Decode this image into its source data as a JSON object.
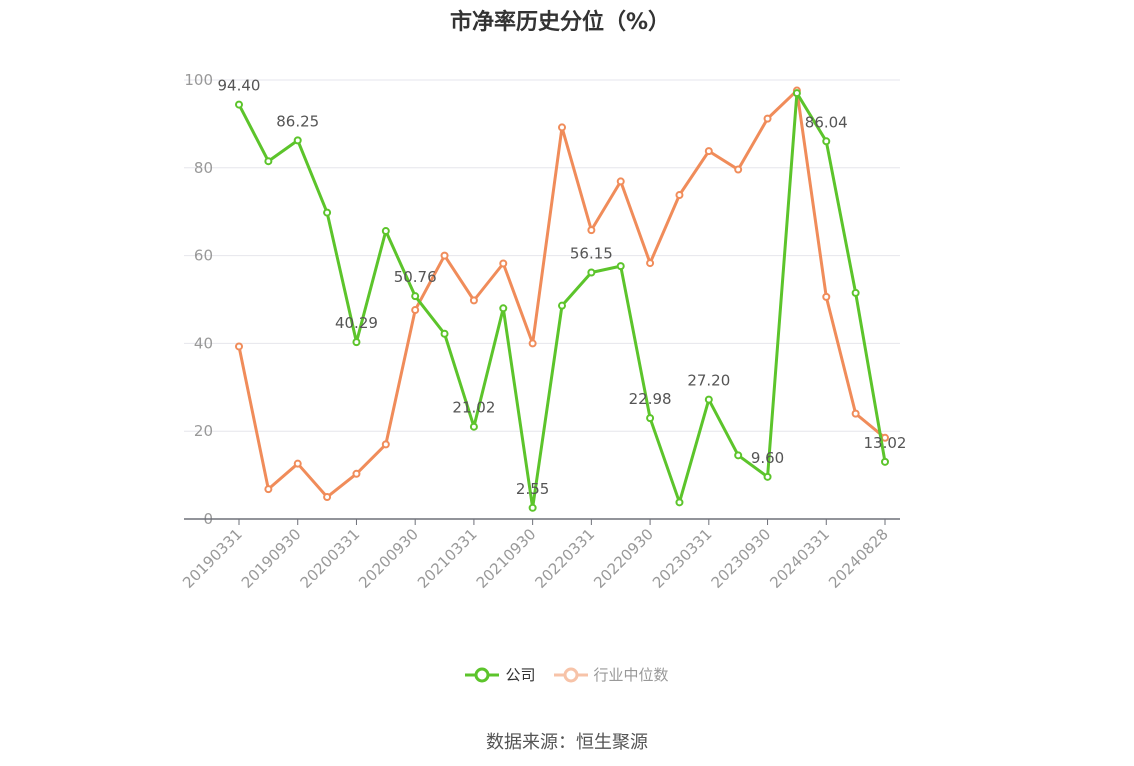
{
  "title": "市净率历史分位（%）",
  "source": "数据来源：恒生聚源",
  "colors": {
    "company": "#5cc42b",
    "industry": "#f08c5a",
    "axis": "#999999",
    "grid": "#e6e6ec",
    "label": "#555555"
  },
  "chart_data": {
    "type": "line",
    "title": "市净率历史分位（%）",
    "ylim": [
      0,
      100
    ],
    "yticks": [
      0,
      20,
      40,
      60,
      80,
      100
    ],
    "grid": true,
    "legend_position": "bottom",
    "x": [
      "20190331",
      "20190630",
      "20190930",
      "20191231",
      "20200331",
      "20200630",
      "20200930",
      "20201231",
      "20210331",
      "20210630",
      "20210930",
      "20211231",
      "20220331",
      "20220630",
      "20220930",
      "20221231",
      "20230331",
      "20230630",
      "20230930",
      "20231231",
      "20240331",
      "20240630",
      "20240828"
    ],
    "xtick_labels": [
      "20190331",
      "20190930",
      "20200331",
      "20200930",
      "20210331",
      "20210930",
      "20220331",
      "20220930",
      "20230331",
      "20230930",
      "20240331",
      "20240828"
    ],
    "series": [
      {
        "name": "公司",
        "color": "#5cc42b",
        "values": [
          94.4,
          81.5,
          86.25,
          69.8,
          40.29,
          65.6,
          50.76,
          42.2,
          21.02,
          48.0,
          2.55,
          48.6,
          56.15,
          57.6,
          22.98,
          3.8,
          27.2,
          14.5,
          9.6,
          97.0,
          86.04,
          51.5,
          13.02
        ],
        "data_labels": [
          {
            "i": 0,
            "text": "94.40"
          },
          {
            "i": 2,
            "text": "86.25"
          },
          {
            "i": 4,
            "text": "40.29"
          },
          {
            "i": 6,
            "text": "50.76"
          },
          {
            "i": 8,
            "text": "21.02"
          },
          {
            "i": 10,
            "text": "2.55"
          },
          {
            "i": 12,
            "text": "56.15"
          },
          {
            "i": 14,
            "text": "22.98"
          },
          {
            "i": 16,
            "text": "27.20"
          },
          {
            "i": 18,
            "text": "9.60"
          },
          {
            "i": 20,
            "text": "86.04"
          },
          {
            "i": 22,
            "text": "13.02"
          }
        ]
      },
      {
        "name": "行业中位数",
        "color": "#f08c5a",
        "values": [
          39.3,
          6.8,
          12.6,
          5.0,
          10.3,
          17.0,
          47.6,
          60.0,
          49.8,
          58.2,
          40.0,
          89.2,
          65.8,
          76.9,
          58.3,
          73.8,
          83.8,
          79.6,
          91.2,
          97.6,
          50.6,
          24.0,
          18.5
        ]
      }
    ]
  },
  "legend": [
    {
      "label": "公司"
    },
    {
      "label": "行业中位数"
    }
  ]
}
